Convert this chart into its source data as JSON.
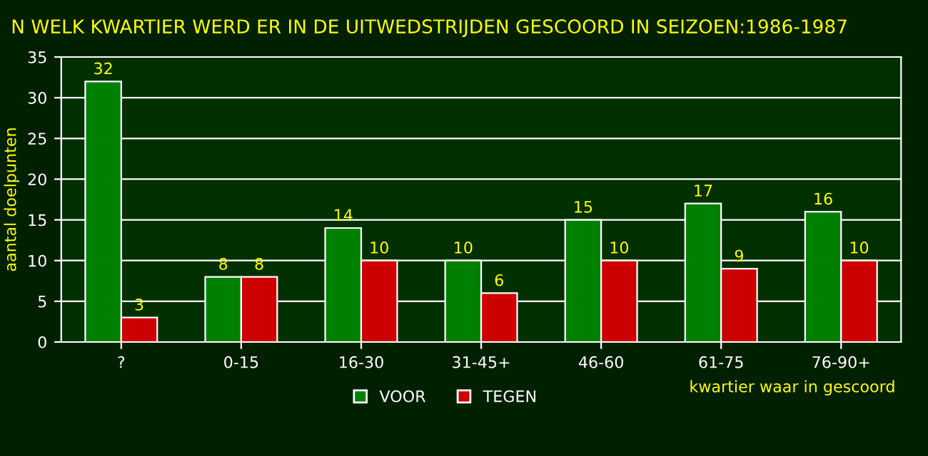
{
  "chart_data": {
    "type": "bar",
    "title": "N WELK KWARTIER WERD ER IN DE UITWEDSTRIJDEN GESCOORD IN SEIZOEN:1986-1987",
    "xlabel": "kwartier waar in gescoord",
    "ylabel": "aantal doelpunten",
    "categories": [
      "?",
      "0-15",
      "16-30",
      "31-45+",
      "46-60",
      "61-75",
      "76-90+"
    ],
    "series": [
      {
        "name": "VOOR",
        "color": "#008000",
        "values": [
          32,
          8,
          14,
          10,
          15,
          17,
          16
        ]
      },
      {
        "name": "TEGEN",
        "color": "#cc0000",
        "values": [
          3,
          8,
          10,
          6,
          10,
          9,
          10
        ]
      }
    ],
    "ylim": [
      0,
      35
    ],
    "yticks": [
      0,
      5,
      10,
      15,
      20,
      25,
      30,
      35
    ],
    "grid": "y",
    "legend": "bottom",
    "data_labels": true
  }
}
